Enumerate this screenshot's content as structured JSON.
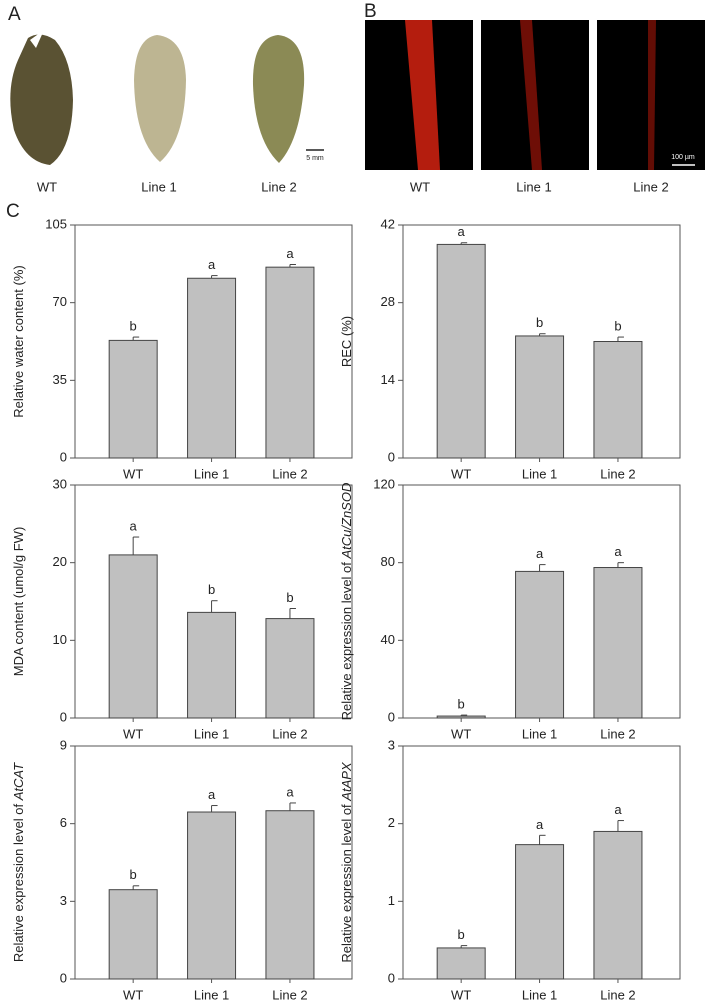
{
  "panel_labels": [
    "A",
    "B",
    "C"
  ],
  "panel_a": {
    "labels": [
      "WT",
      "Line 1",
      "Line 2"
    ],
    "scale_bar": "5 mm"
  },
  "panel_b": {
    "labels": [
      "WT",
      "Line 1",
      "Line 2"
    ],
    "scale_bar": "100 µm"
  },
  "chart_data": [
    {
      "type": "bar",
      "y_label": "Relative water content (%)",
      "categories": [
        "WT",
        "Line 1",
        "Line 2"
      ],
      "values": [
        53,
        81,
        86
      ],
      "errors": [
        1.5,
        1.2,
        1.2
      ],
      "annotations": [
        "b",
        "a",
        "a"
      ],
      "color": "#c0c0c0",
      "ylim": [
        0,
        105
      ],
      "yticks": [
        0,
        35,
        70,
        105
      ]
    },
    {
      "type": "bar",
      "y_label": "REC (%)",
      "categories": [
        "WT",
        "Line 1",
        "Line 2"
      ],
      "values": [
        38.5,
        22,
        21
      ],
      "errors": [
        0.3,
        0.4,
        0.8
      ],
      "annotations": [
        "a",
        "b",
        "b"
      ],
      "color": "#c0c0c0",
      "ylim": [
        0,
        42
      ],
      "yticks": [
        0,
        14,
        28,
        42
      ]
    },
    {
      "type": "bar",
      "y_label": "MDA content (umol/g FW)",
      "categories": [
        "WT",
        "Line 1",
        "Line 2"
      ],
      "values": [
        21,
        13.6,
        12.8
      ],
      "errors": [
        2.3,
        1.5,
        1.3
      ],
      "annotations": [
        "a",
        "b",
        "b"
      ],
      "color": "#c0c0c0",
      "ylim": [
        0,
        30
      ],
      "yticks": [
        0,
        10,
        20,
        30
      ]
    },
    {
      "type": "bar",
      "y_label": "Relative expression level of ",
      "y_label_italic": "AtCu/ZnSOD",
      "categories": [
        "WT",
        "Line 1",
        "Line 2"
      ],
      "values": [
        1,
        75.5,
        77.5
      ],
      "errors": [
        0.5,
        3.5,
        2.5
      ],
      "annotations": [
        "b",
        "a",
        "a"
      ],
      "color": "#c0c0c0",
      "ylim": [
        0,
        120
      ],
      "yticks": [
        0,
        40,
        80,
        120
      ]
    },
    {
      "type": "bar",
      "y_label": "Relative expression level of ",
      "y_label_italic": "AtCAT",
      "categories": [
        "WT",
        "Line 1",
        "Line 2"
      ],
      "values": [
        3.45,
        6.45,
        6.5
      ],
      "errors": [
        0.15,
        0.25,
        0.3
      ],
      "annotations": [
        "b",
        "a",
        "a"
      ],
      "color": "#c0c0c0",
      "ylim": [
        0,
        9
      ],
      "yticks": [
        0,
        3,
        6,
        9
      ]
    },
    {
      "type": "bar",
      "y_label": "Relative expression level of ",
      "y_label_italic": "AtAPX",
      "categories": [
        "WT",
        "Line 1",
        "Line 2"
      ],
      "values": [
        0.4,
        1.73,
        1.9
      ],
      "errors": [
        0.03,
        0.12,
        0.14
      ],
      "annotations": [
        "b",
        "a",
        "a"
      ],
      "color": "#c0c0c0",
      "ylim": [
        0,
        3
      ],
      "yticks": [
        0,
        1,
        2,
        3
      ]
    }
  ]
}
